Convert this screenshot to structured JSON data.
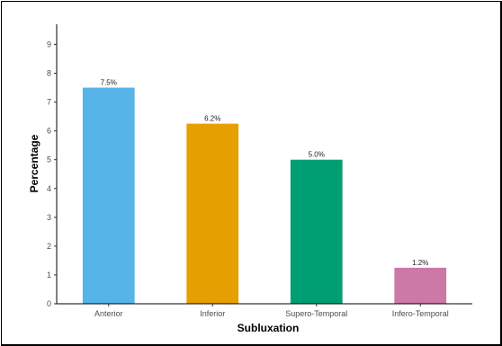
{
  "chart_data": {
    "type": "bar",
    "categories": [
      "Anterior",
      "Inferior",
      "Supero-Temporal",
      "Infero-Temporal"
    ],
    "values": [
      7.5,
      6.25,
      5.0,
      1.25
    ],
    "data_labels": [
      "7.5%",
      "6.2%",
      "5.0%",
      "1.2%"
    ],
    "colors": [
      "#56b4e9",
      "#e69f00",
      "#009e73",
      "#cc79a7"
    ],
    "title": "",
    "xlabel": "Subluxation",
    "ylabel": "Percentage",
    "ylim": [
      0,
      9.7
    ],
    "yticks": [
      0,
      1,
      2,
      3,
      4,
      5,
      6,
      7,
      8,
      9
    ],
    "grid": false,
    "legend": "none"
  }
}
